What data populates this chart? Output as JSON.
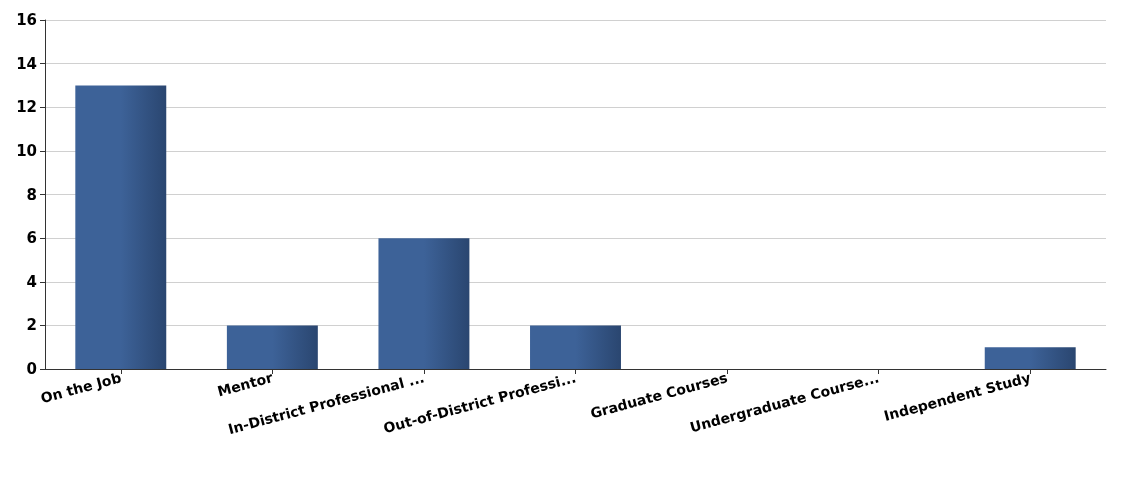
{
  "chart_data": {
    "type": "bar",
    "categories": [
      "On the Job",
      "Mentor",
      "In-District Professional ...",
      "Out-of-District Professi...",
      "Graduate Courses",
      "Undergraduate Course...",
      "Independent Study"
    ],
    "values": [
      13,
      2,
      6,
      2,
      0,
      0,
      1
    ],
    "color": "#3d6298",
    "ylim": [
      0,
      16
    ],
    "yticks": [
      0,
      2,
      4,
      6,
      8,
      10,
      12,
      14,
      16
    ],
    "grid": "y"
  }
}
